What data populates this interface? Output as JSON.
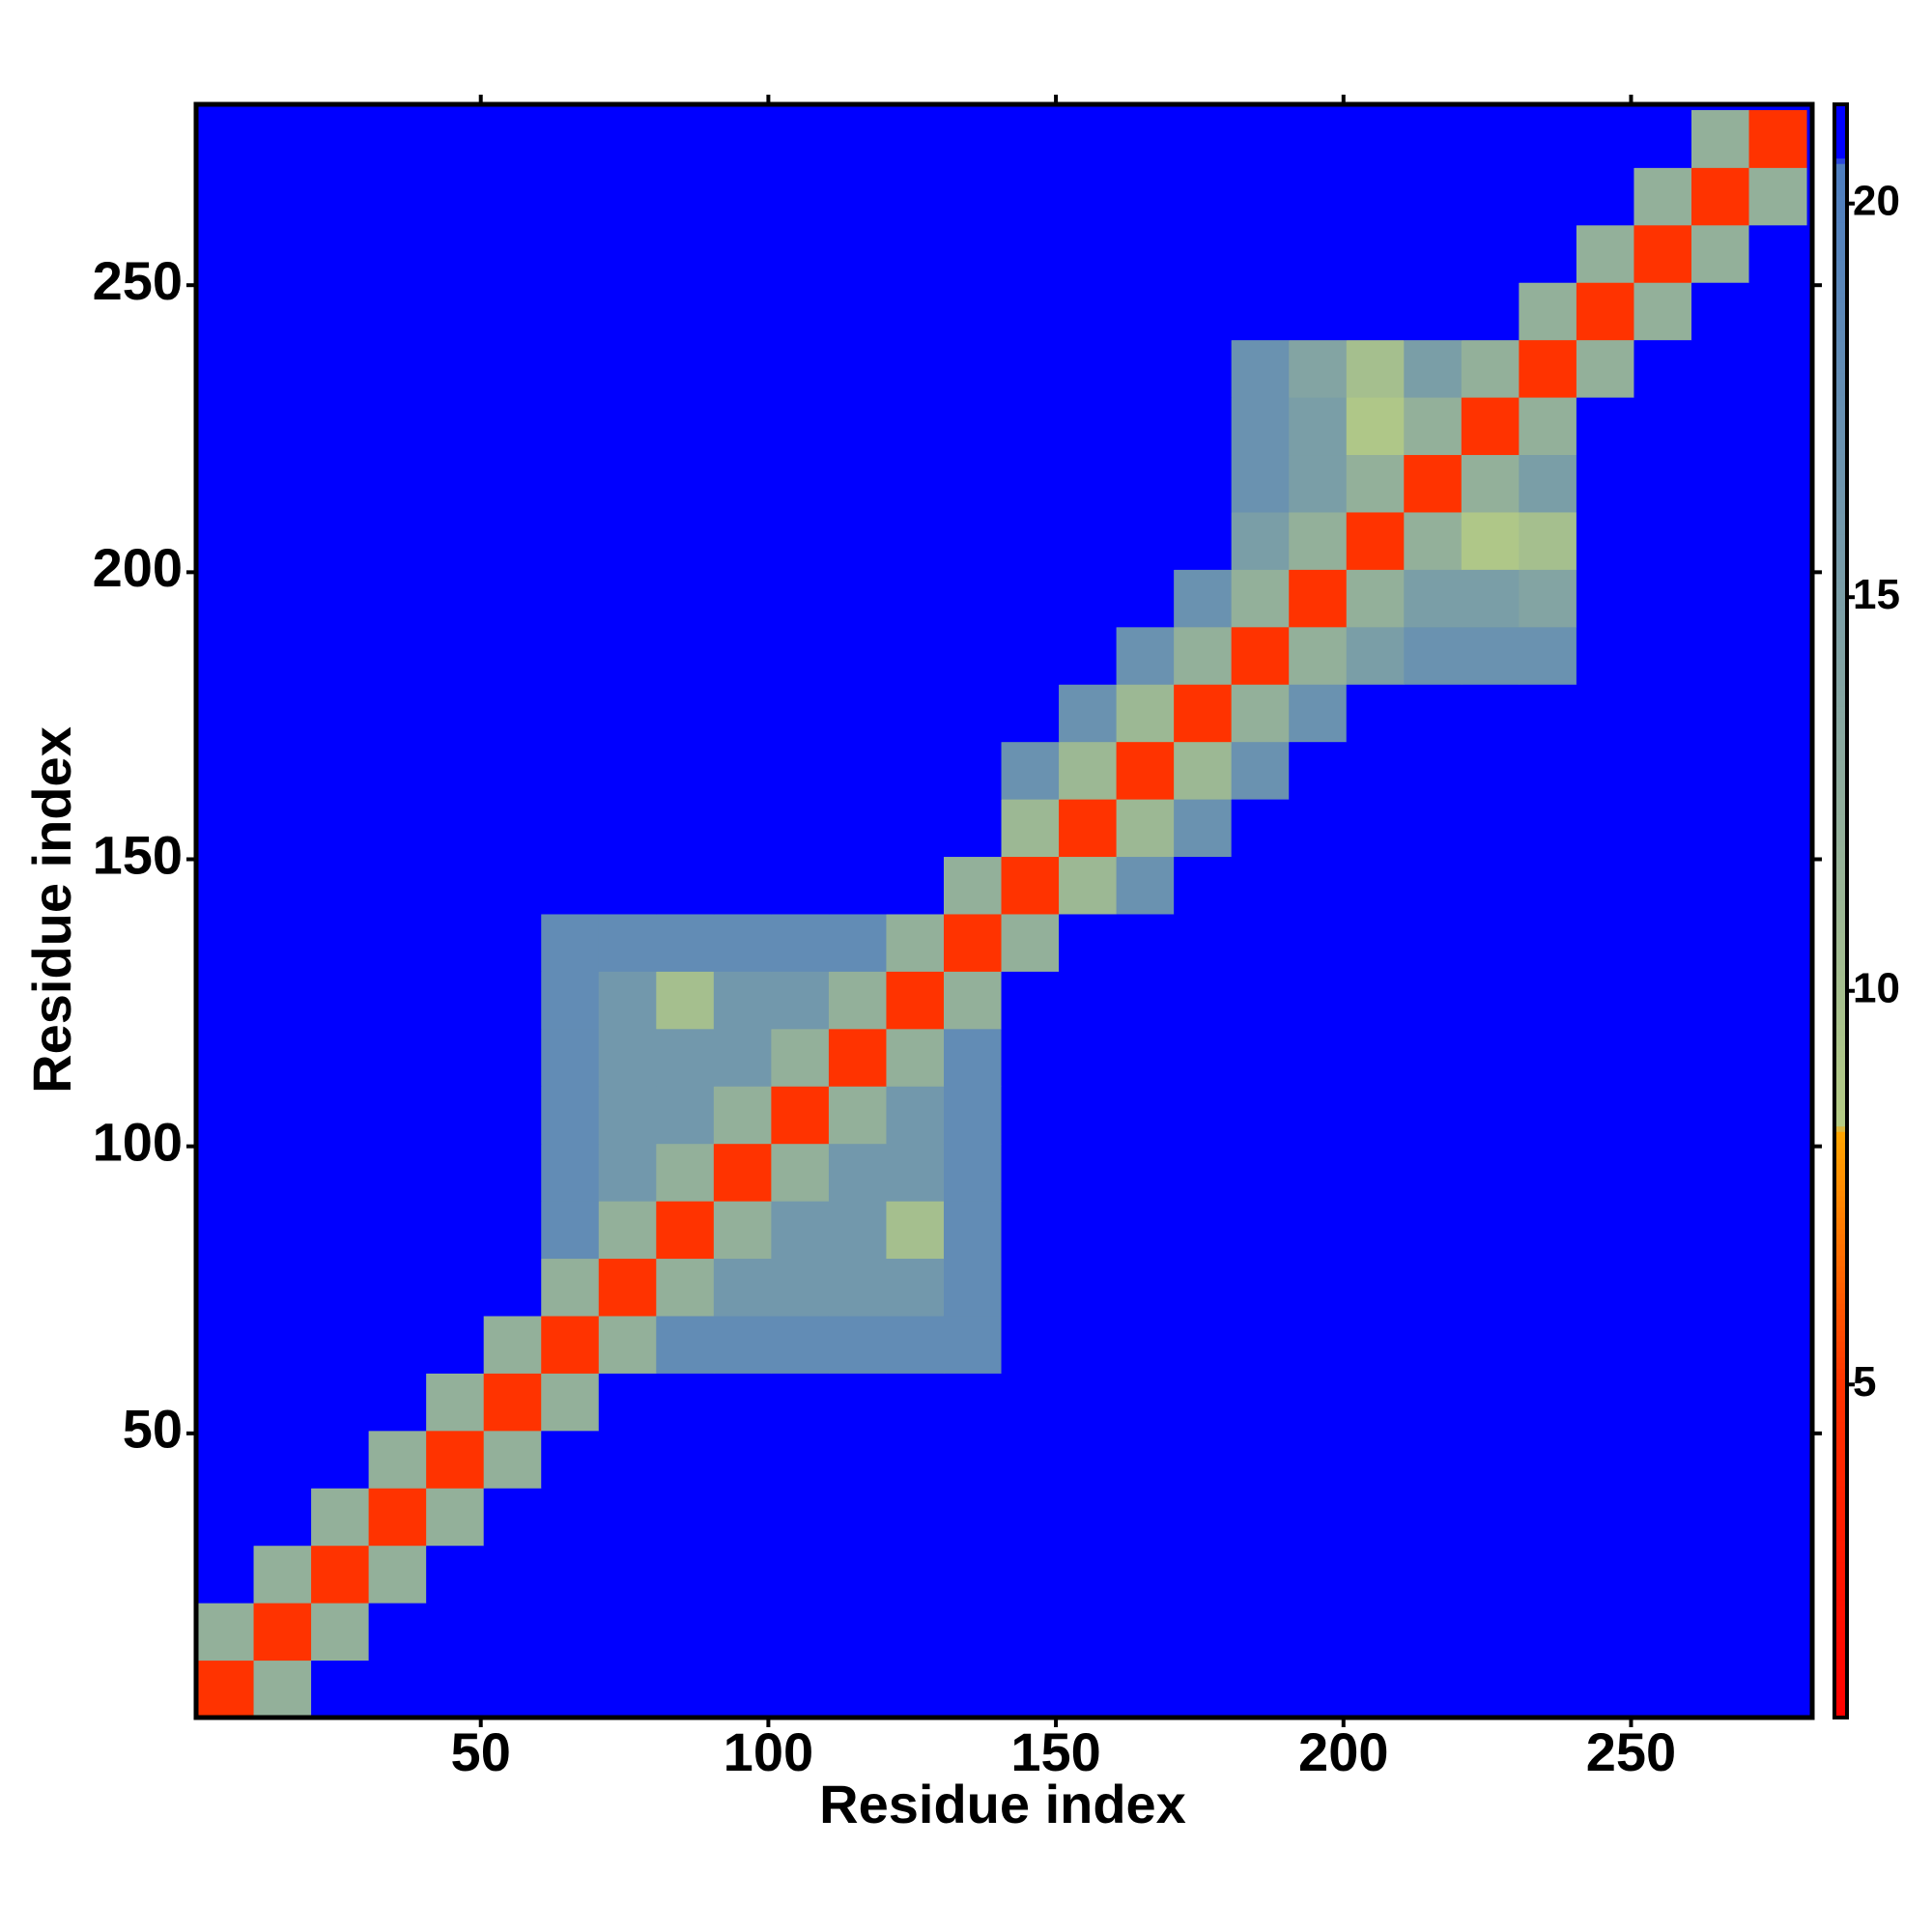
{
  "chart_data": {
    "type": "heatmap",
    "x_label": "Residue index",
    "y_label": "Residue index",
    "xlim": [
      0.5,
      281.5
    ],
    "ylim": [
      0.5,
      281.5
    ],
    "xticks": [
      50,
      100,
      150,
      200,
      250
    ],
    "yticks": [
      50,
      100,
      150,
      200,
      250
    ],
    "clim": [
      0.77,
      21.26
    ],
    "cticks": [
      5,
      10,
      15,
      20
    ],
    "colorscale": [
      {
        "value": 0.8,
        "color": "#ff0000"
      },
      {
        "value": 5,
        "color": "#ff3300"
      },
      {
        "value": 8.2,
        "color": "#ffa500"
      },
      {
        "value": 8.3,
        "color": "#b5cc84"
      },
      {
        "value": 12,
        "color": "#93b09a"
      },
      {
        "value": 20.5,
        "color": "#4d7dc0"
      },
      {
        "value": 20.6,
        "color": "#0000ff"
      },
      {
        "value": 21.3,
        "color": "#0000ff"
      }
    ],
    "x": [
      5.5,
      15.5,
      25.5,
      35.5,
      45.5,
      55.5,
      65.5,
      75.5,
      85.5,
      95.5,
      105.5,
      115.5,
      125.5,
      135.5,
      145.5,
      155.5,
      165.5,
      175.5,
      185.5,
      195.5,
      205.5,
      215.5,
      225.5,
      235.5,
      245.5,
      255.5,
      265.5,
      275.5
    ],
    "y": [
      5.5,
      15.5,
      25.5,
      35.5,
      45.5,
      55.5,
      65.5,
      75.5,
      85.5,
      95.5,
      105.5,
      115.5,
      125.5,
      135.5,
      145.5,
      155.5,
      165.5,
      175.5,
      185.5,
      195.5,
      205.5,
      215.5,
      225.5,
      235.5,
      245.5,
      255.5,
      265.5,
      275.5
    ],
    "values": [
      [
        5,
        12,
        21,
        21,
        21,
        21,
        21,
        21,
        21,
        21,
        21,
        21,
        21,
        21,
        21,
        21,
        21,
        21,
        21,
        21,
        21,
        21,
        21,
        21,
        21,
        21,
        21,
        21
      ],
      [
        12,
        5,
        12,
        21,
        21,
        21,
        21,
        21,
        21,
        21,
        21,
        21,
        21,
        21,
        21,
        21,
        21,
        21,
        21,
        21,
        21,
        21,
        21,
        21,
        21,
        21,
        21,
        21
      ],
      [
        21,
        12,
        5,
        12,
        21,
        21,
        21,
        21,
        21,
        21,
        21,
        21,
        21,
        21,
        21,
        21,
        21,
        21,
        21,
        21,
        21,
        21,
        21,
        21,
        21,
        21,
        21,
        21
      ],
      [
        21,
        21,
        12,
        5,
        12,
        21,
        21,
        21,
        21,
        21,
        21,
        21,
        21,
        21,
        21,
        21,
        21,
        21,
        21,
        21,
        21,
        21,
        21,
        21,
        21,
        21,
        21,
        21
      ],
      [
        21,
        21,
        21,
        12,
        5,
        12,
        21,
        21,
        21,
        21,
        21,
        21,
        21,
        21,
        21,
        21,
        21,
        21,
        21,
        21,
        21,
        21,
        21,
        21,
        21,
        21,
        21,
        21
      ],
      [
        21,
        21,
        21,
        21,
        12,
        5,
        12,
        21,
        21,
        21,
        21,
        21,
        21,
        21,
        21,
        21,
        21,
        21,
        21,
        21,
        21,
        21,
        21,
        21,
        21,
        21,
        21,
        21
      ],
      [
        21,
        21,
        21,
        21,
        21,
        12,
        5,
        12,
        18,
        18,
        18,
        18,
        18,
        18,
        21,
        21,
        21,
        21,
        21,
        21,
        21,
        21,
        21,
        21,
        21,
        21,
        21,
        21
      ],
      [
        21,
        21,
        21,
        21,
        21,
        21,
        12,
        5,
        12,
        16,
        16,
        16,
        16,
        18,
        21,
        21,
        21,
        21,
        21,
        21,
        21,
        21,
        21,
        21,
        21,
        21,
        21,
        21
      ],
      [
        21,
        21,
        21,
        21,
        21,
        21,
        18,
        12,
        5,
        12,
        16,
        16,
        10,
        18,
        21,
        21,
        21,
        21,
        21,
        21,
        21,
        21,
        21,
        21,
        21,
        21,
        21,
        21
      ],
      [
        21,
        21,
        21,
        21,
        21,
        21,
        18,
        16,
        12,
        5,
        12,
        16,
        16,
        18,
        21,
        21,
        21,
        21,
        21,
        21,
        21,
        21,
        21,
        21,
        21,
        21,
        21,
        21
      ],
      [
        21,
        21,
        21,
        21,
        21,
        21,
        18,
        16,
        16,
        12,
        5,
        12,
        16,
        18,
        21,
        21,
        21,
        21,
        21,
        21,
        21,
        21,
        21,
        21,
        21,
        21,
        21,
        21
      ],
      [
        21,
        21,
        21,
        21,
        21,
        21,
        18,
        16,
        16,
        16,
        12,
        5,
        12,
        18,
        21,
        21,
        21,
        21,
        21,
        21,
        21,
        21,
        21,
        21,
        21,
        21,
        21,
        21
      ],
      [
        21,
        21,
        21,
        21,
        21,
        21,
        18,
        16,
        10,
        16,
        16,
        12,
        5,
        12,
        21,
        21,
        21,
        21,
        21,
        21,
        21,
        21,
        21,
        21,
        21,
        21,
        21,
        21
      ],
      [
        21,
        21,
        21,
        21,
        21,
        21,
        18,
        18,
        18,
        18,
        18,
        18,
        12,
        5,
        12,
        21,
        21,
        21,
        21,
        21,
        21,
        21,
        21,
        21,
        21,
        21,
        21,
        21
      ],
      [
        21,
        21,
        21,
        21,
        21,
        21,
        21,
        21,
        21,
        21,
        21,
        21,
        21,
        12,
        5,
        11,
        17,
        21,
        21,
        21,
        21,
        21,
        21,
        21,
        21,
        21,
        21,
        21
      ],
      [
        21,
        21,
        21,
        21,
        21,
        21,
        21,
        21,
        21,
        21,
        21,
        21,
        21,
        21,
        11,
        5,
        11,
        17,
        21,
        21,
        21,
        21,
        21,
        21,
        21,
        21,
        21,
        21
      ],
      [
        21,
        21,
        21,
        21,
        21,
        21,
        21,
        21,
        21,
        21,
        21,
        21,
        21,
        21,
        17,
        11,
        5,
        11,
        17,
        21,
        21,
        21,
        21,
        21,
        21,
        21,
        21,
        21
      ],
      [
        21,
        21,
        21,
        21,
        21,
        21,
        21,
        21,
        21,
        21,
        21,
        21,
        21,
        21,
        21,
        17,
        11,
        5,
        12,
        17,
        21,
        21,
        21,
        21,
        21,
        21,
        21,
        21
      ],
      [
        21,
        21,
        21,
        21,
        21,
        21,
        21,
        21,
        21,
        21,
        21,
        21,
        21,
        21,
        21,
        21,
        17,
        12,
        5,
        12,
        15,
        17,
        17,
        17,
        21,
        21,
        21,
        21
      ],
      [
        21,
        21,
        21,
        21,
        21,
        21,
        21,
        21,
        21,
        21,
        21,
        21,
        21,
        21,
        21,
        21,
        21,
        17,
        12,
        5,
        12,
        15,
        15,
        14,
        21,
        21,
        21,
        21
      ],
      [
        21,
        21,
        21,
        21,
        21,
        21,
        21,
        21,
        21,
        21,
        21,
        21,
        21,
        21,
        21,
        21,
        21,
        21,
        15,
        12,
        5,
        12,
        9,
        10,
        21,
        21,
        21,
        21
      ],
      [
        21,
        21,
        21,
        21,
        21,
        21,
        21,
        21,
        21,
        21,
        21,
        21,
        21,
        21,
        21,
        21,
        21,
        21,
        17,
        15,
        12,
        5,
        12,
        15,
        21,
        21,
        21,
        21
      ],
      [
        21,
        21,
        21,
        21,
        21,
        21,
        21,
        21,
        21,
        21,
        21,
        21,
        21,
        21,
        21,
        21,
        21,
        21,
        17,
        15,
        9,
        12,
        5,
        12,
        21,
        21,
        21,
        21
      ],
      [
        21,
        21,
        21,
        21,
        21,
        21,
        21,
        21,
        21,
        21,
        21,
        21,
        21,
        21,
        21,
        21,
        21,
        21,
        17,
        14,
        10,
        15,
        12,
        5,
        12,
        21,
        21,
        21
      ],
      [
        21,
        21,
        21,
        21,
        21,
        21,
        21,
        21,
        21,
        21,
        21,
        21,
        21,
        21,
        21,
        21,
        21,
        21,
        21,
        21,
        21,
        21,
        21,
        12,
        5,
        12,
        21,
        21
      ],
      [
        21,
        21,
        21,
        21,
        21,
        21,
        21,
        21,
        21,
        21,
        21,
        21,
        21,
        21,
        21,
        21,
        21,
        21,
        21,
        21,
        21,
        21,
        21,
        21,
        12,
        5,
        12,
        21
      ],
      [
        21,
        21,
        21,
        21,
        21,
        21,
        21,
        21,
        21,
        21,
        21,
        21,
        21,
        21,
        21,
        21,
        21,
        21,
        21,
        21,
        21,
        21,
        21,
        21,
        21,
        12,
        5,
        12
      ],
      [
        21,
        21,
        21,
        21,
        21,
        21,
        21,
        21,
        21,
        21,
        21,
        21,
        21,
        21,
        21,
        21,
        21,
        21,
        21,
        21,
        21,
        21,
        21,
        21,
        21,
        21,
        12,
        5
      ]
    ]
  }
}
